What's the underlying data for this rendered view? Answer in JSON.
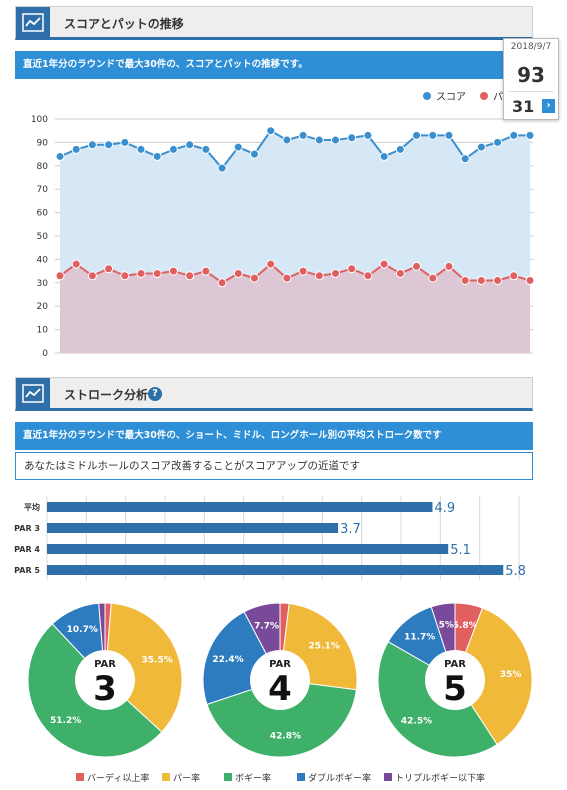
{
  "section1": {
    "title": "スコアとパットの推移",
    "description": "直近1年分のラウンドで最大30件の、スコアとパットの推移です。"
  },
  "tooltip": {
    "date": "2018/9/7",
    "score": "93",
    "putt": "31",
    "arrow": "›"
  },
  "section2": {
    "title": "ストローク分析",
    "help": "?",
    "description": "直近1年分のラウンドで最大30件の、ショート、ミドル、ロングホール別の平均ストローク数です",
    "advice": "あなたはミドルホールのスコア改善することがスコアアップの近道です"
  },
  "colors": {
    "score": "#3a8fcf",
    "putt": "#e06060",
    "birdie": "#e06060",
    "par": "#f0b93a",
    "bogey": "#3eb06a",
    "double": "#2e7cc0",
    "triple": "#7a4a9a",
    "hbar": "#2e6faa"
  },
  "icons": {
    "section1": "line-chart-icon",
    "section2": "line-chart-icon"
  },
  "chart_data": [
    {
      "type": "line",
      "series": [
        {
          "name": "スコア",
          "values": [
            84,
            87,
            89,
            89,
            90,
            87,
            84,
            87,
            89,
            87,
            79,
            88,
            85,
            95,
            91,
            93,
            91,
            91,
            92,
            93,
            84,
            87,
            93,
            93,
            93,
            83,
            88,
            90,
            93,
            93
          ]
        },
        {
          "name": "パット",
          "values": [
            33,
            38,
            33,
            36,
            33,
            34,
            34,
            35,
            33,
            35,
            30,
            34,
            32,
            38,
            32,
            35,
            33,
            34,
            36,
            33,
            38,
            34,
            37,
            32,
            37,
            31,
            31,
            31,
            33,
            31
          ]
        }
      ],
      "ylim": [
        0,
        100
      ],
      "yticks": [
        "0",
        "10",
        "20",
        "30",
        "40",
        "50",
        "60",
        "70",
        "80",
        "90",
        "100"
      ],
      "legend": "top-right",
      "grid": true
    },
    {
      "type": "bar",
      "orientation": "horizontal",
      "categories": [
        "平均",
        "PAR 3",
        "PAR 4",
        "PAR 5"
      ],
      "values": [
        4.9,
        3.7,
        5.1,
        5.8
      ],
      "value_labels": [
        "4.9",
        "3.7",
        "5.1",
        "5.8"
      ],
      "xlim": [
        0,
        6
      ]
    },
    {
      "type": "pie",
      "title": "PAR",
      "center_number": "3",
      "values": [
        1.3,
        35.5,
        51.2,
        10.7,
        1.3
      ],
      "labels": [
        "",
        "35.5%",
        "51.2%",
        "10.7%",
        ""
      ]
    },
    {
      "type": "pie",
      "title": "PAR",
      "center_number": "4",
      "values": [
        1.9,
        25.1,
        42.8,
        22.4,
        7.7
      ],
      "labels": [
        "",
        "25.1%",
        "42.8%",
        "22.4%",
        "7.7%"
      ]
    },
    {
      "type": "pie",
      "title": "PAR",
      "center_number": "5",
      "values": [
        5.8,
        35,
        42.5,
        11.7,
        5
      ],
      "labels": [
        "5.8%",
        "35%",
        "42.5%",
        "11.7%",
        "5%"
      ]
    }
  ],
  "pie_legend": [
    "バーディ以上率",
    "パー率",
    "ボギー率",
    "ダブルボギー率",
    "トリプルボギー以下率"
  ]
}
